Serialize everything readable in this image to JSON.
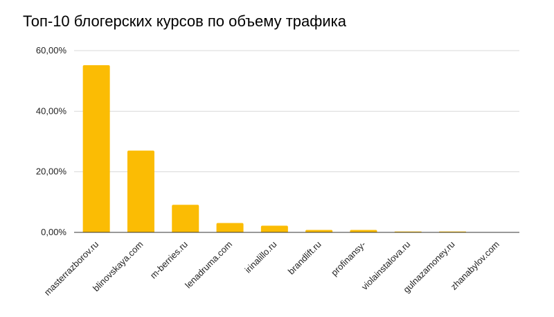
{
  "chart_data": {
    "type": "bar",
    "title": "Топ-10 блогерских курсов по объему трафика",
    "xlabel": "",
    "ylabel": "",
    "categories": [
      "masterrazborov.ru",
      "blinovskaya.com",
      "m-berries.ru",
      "lenadruma.com",
      "irinalillo.ru",
      "brandlift.ru",
      "profinansy-",
      "violainstalova.ru",
      "gulnazamoney.ru",
      "zhanabylov.com"
    ],
    "values": [
      55.2,
      27.0,
      9.1,
      3.1,
      2.2,
      0.8,
      0.8,
      0.3,
      0.3,
      0.0
    ],
    "ylim": [
      0,
      60
    ],
    "yticks": [
      "0,00%",
      "20,00%",
      "40,00%",
      "60,00%"
    ],
    "ytick_values": [
      0,
      20,
      40,
      60
    ],
    "grid": true,
    "colors": {
      "bar": "#fbbc04",
      "grid": "#d9d9d9",
      "axis": "#333333"
    }
  }
}
